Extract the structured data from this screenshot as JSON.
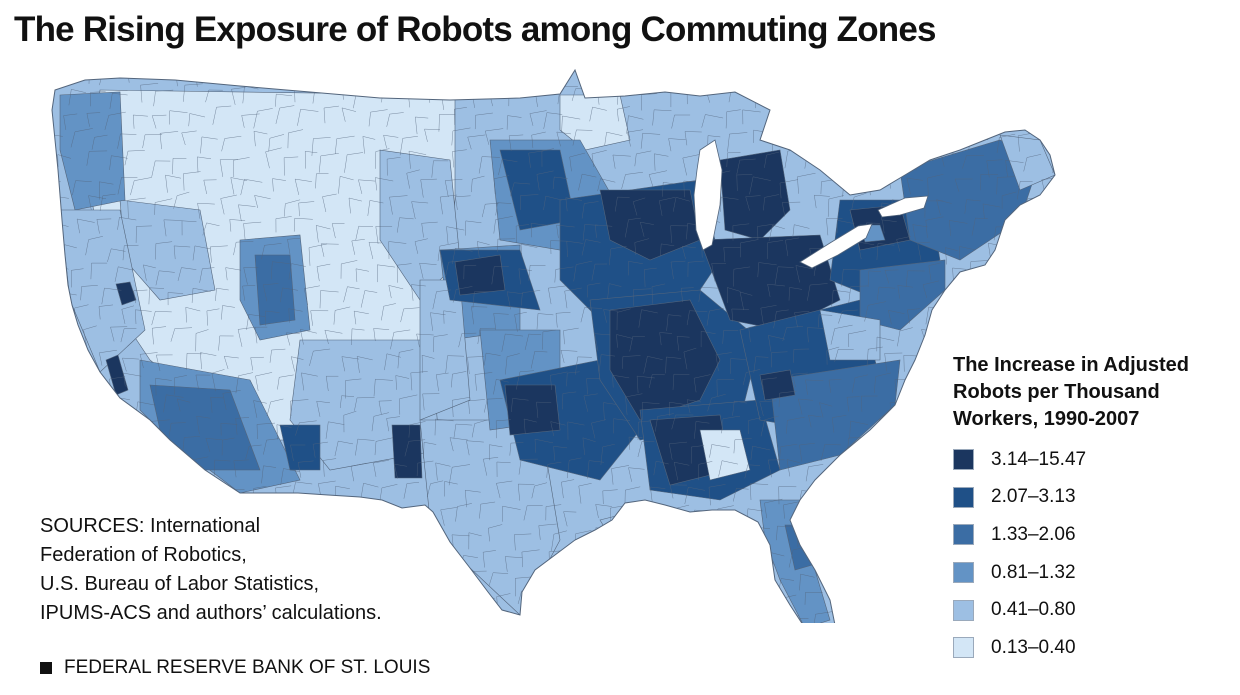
{
  "title": "The Rising Exposure of Robots among Commuting Zones",
  "legend": {
    "title_lines": [
      "The Increase in Adjusted",
      "Robots per Thousand",
      "Workers, 1990-2007"
    ],
    "classes": [
      {
        "label": "3.14–15.47",
        "color": "#1b365f"
      },
      {
        "label": "2.07–3.13",
        "color": "#1f5087"
      },
      {
        "label": "1.33–2.06",
        "color": "#3b6da4"
      },
      {
        "label": "0.81–1.32",
        "color": "#6393c5"
      },
      {
        "label": "0.41–0.80",
        "color": "#9dbfe3"
      },
      {
        "label": "0.13–0.40",
        "color": "#d3e6f6"
      }
    ]
  },
  "sources_lines": [
    "SOURCES: International",
    "Federation of Robotics,",
    "U.S. Bureau of Labor Statistics,",
    "IPUMS-ACS and authors’ calculations."
  ],
  "credit": "FEDERAL RESERVE BANK OF ST. LOUIS",
  "map_colors": {
    "border": "#53657c",
    "water": "#ffffff"
  }
}
